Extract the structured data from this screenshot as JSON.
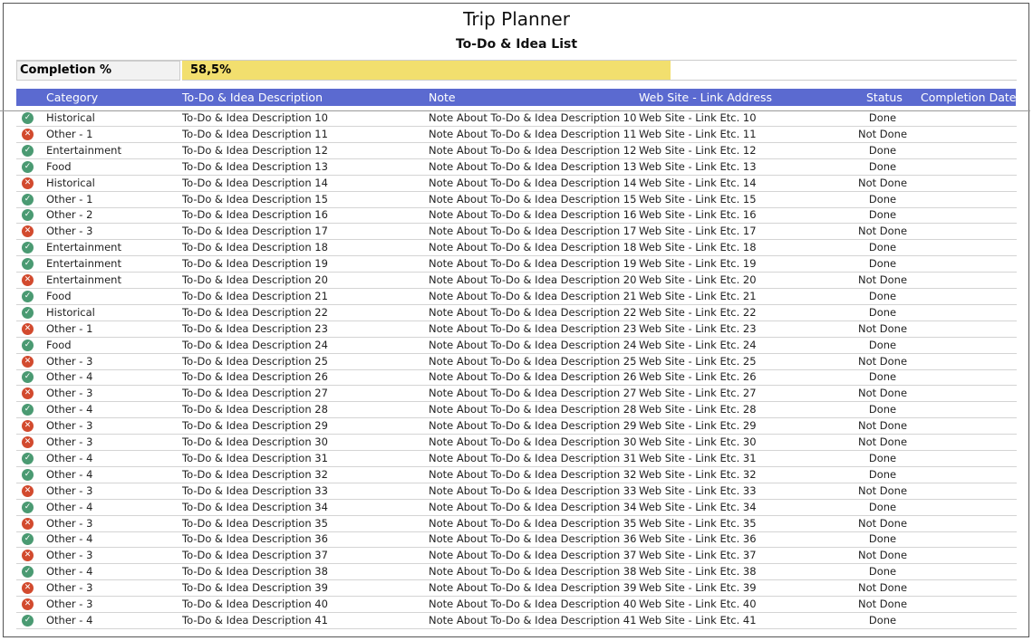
{
  "title": "Trip Planner",
  "subtitle": "To-Do & Idea List",
  "completion": {
    "label": "Completion %",
    "value_text": "58,5%",
    "percent": 58.5
  },
  "columns": [
    "Category",
    "To-Do & Idea Description",
    "Note",
    "Web Site - Link Address",
    "Status",
    "Completion Date"
  ],
  "colors": {
    "header": "#5b6ad0",
    "bar": "#f2df6e",
    "done": "#4a9a72",
    "not_done": "#d24a2e"
  },
  "rows": [
    {
      "category": "Historical",
      "description": "To-Do & Idea Description 10",
      "note": "Note About To-Do & Idea Description 10",
      "link": "Web Site - Link Etc. 10",
      "status": "Done"
    },
    {
      "category": "Other - 1",
      "description": "To-Do & Idea Description 11",
      "note": "Note About To-Do & Idea Description 11",
      "link": "Web Site - Link Etc. 11",
      "status": "Not Done"
    },
    {
      "category": "Entertainment",
      "description": "To-Do & Idea Description 12",
      "note": "Note About To-Do & Idea Description 12",
      "link": "Web Site - Link Etc. 12",
      "status": "Done"
    },
    {
      "category": "Food",
      "description": "To-Do & Idea Description 13",
      "note": "Note About To-Do & Idea Description 13",
      "link": "Web Site - Link Etc. 13",
      "status": "Done"
    },
    {
      "category": "Historical",
      "description": "To-Do & Idea Description 14",
      "note": "Note About To-Do & Idea Description 14",
      "link": "Web Site - Link Etc. 14",
      "status": "Not Done"
    },
    {
      "category": "Other - 1",
      "description": "To-Do & Idea Description 15",
      "note": "Note About To-Do & Idea Description 15",
      "link": "Web Site - Link Etc. 15",
      "status": "Done"
    },
    {
      "category": "Other - 2",
      "description": "To-Do & Idea Description 16",
      "note": "Note About To-Do & Idea Description 16",
      "link": "Web Site - Link Etc. 16",
      "status": "Done"
    },
    {
      "category": "Other - 3",
      "description": "To-Do & Idea Description 17",
      "note": "Note About To-Do & Idea Description 17",
      "link": "Web Site - Link Etc. 17",
      "status": "Not Done"
    },
    {
      "category": "Entertainment",
      "description": "To-Do & Idea Description 18",
      "note": "Note About To-Do & Idea Description 18",
      "link": "Web Site - Link Etc. 18",
      "status": "Done"
    },
    {
      "category": "Entertainment",
      "description": "To-Do & Idea Description 19",
      "note": "Note About To-Do & Idea Description 19",
      "link": "Web Site - Link Etc. 19",
      "status": "Done"
    },
    {
      "category": "Entertainment",
      "description": "To-Do & Idea Description 20",
      "note": "Note About To-Do & Idea Description 20",
      "link": "Web Site - Link Etc. 20",
      "status": "Not Done"
    },
    {
      "category": "Food",
      "description": "To-Do & Idea Description 21",
      "note": "Note About To-Do & Idea Description 21",
      "link": "Web Site - Link Etc. 21",
      "status": "Done"
    },
    {
      "category": "Historical",
      "description": "To-Do & Idea Description 22",
      "note": "Note About To-Do & Idea Description 22",
      "link": "Web Site - Link Etc. 22",
      "status": "Done"
    },
    {
      "category": "Other - 1",
      "description": "To-Do & Idea Description 23",
      "note": "Note About To-Do & Idea Description 23",
      "link": "Web Site - Link Etc. 23",
      "status": "Not Done"
    },
    {
      "category": "Food",
      "description": "To-Do & Idea Description 24",
      "note": "Note About To-Do & Idea Description 24",
      "link": "Web Site - Link Etc. 24",
      "status": "Done"
    },
    {
      "category": "Other - 3",
      "description": "To-Do & Idea Description 25",
      "note": "Note About To-Do & Idea Description 25",
      "link": "Web Site - Link Etc. 25",
      "status": "Not Done"
    },
    {
      "category": "Other - 4",
      "description": "To-Do & Idea Description 26",
      "note": "Note About To-Do & Idea Description 26",
      "link": "Web Site - Link Etc. 26",
      "status": "Done"
    },
    {
      "category": "Other - 3",
      "description": "To-Do & Idea Description 27",
      "note": "Note About To-Do & Idea Description 27",
      "link": "Web Site - Link Etc. 27",
      "status": "Not Done"
    },
    {
      "category": "Other - 4",
      "description": "To-Do & Idea Description 28",
      "note": "Note About To-Do & Idea Description 28",
      "link": "Web Site - Link Etc. 28",
      "status": "Done"
    },
    {
      "category": "Other - 3",
      "description": "To-Do & Idea Description 29",
      "note": "Note About To-Do & Idea Description 29",
      "link": "Web Site - Link Etc. 29",
      "status": "Not Done"
    },
    {
      "category": "Other - 3",
      "description": "To-Do & Idea Description 30",
      "note": "Note About To-Do & Idea Description 30",
      "link": "Web Site - Link Etc. 30",
      "status": "Not Done"
    },
    {
      "category": "Other - 4",
      "description": "To-Do & Idea Description 31",
      "note": "Note About To-Do & Idea Description 31",
      "link": "Web Site - Link Etc. 31",
      "status": "Done"
    },
    {
      "category": "Other - 4",
      "description": "To-Do & Idea Description 32",
      "note": "Note About To-Do & Idea Description 32",
      "link": "Web Site - Link Etc. 32",
      "status": "Done"
    },
    {
      "category": "Other - 3",
      "description": "To-Do & Idea Description 33",
      "note": "Note About To-Do & Idea Description 33",
      "link": "Web Site - Link Etc. 33",
      "status": "Not Done"
    },
    {
      "category": "Other - 4",
      "description": "To-Do & Idea Description 34",
      "note": "Note About To-Do & Idea Description 34",
      "link": "Web Site - Link Etc. 34",
      "status": "Done"
    },
    {
      "category": "Other - 3",
      "description": "To-Do & Idea Description 35",
      "note": "Note About To-Do & Idea Description 35",
      "link": "Web Site - Link Etc. 35",
      "status": "Not Done"
    },
    {
      "category": "Other - 4",
      "description": "To-Do & Idea Description 36",
      "note": "Note About To-Do & Idea Description 36",
      "link": "Web Site - Link Etc. 36",
      "status": "Done"
    },
    {
      "category": "Other - 3",
      "description": "To-Do & Idea Description 37",
      "note": "Note About To-Do & Idea Description 37",
      "link": "Web Site - Link Etc. 37",
      "status": "Not Done"
    },
    {
      "category": "Other - 4",
      "description": "To-Do & Idea Description 38",
      "note": "Note About To-Do & Idea Description 38",
      "link": "Web Site - Link Etc. 38",
      "status": "Done"
    },
    {
      "category": "Other - 3",
      "description": "To-Do & Idea Description 39",
      "note": "Note About To-Do & Idea Description 39",
      "link": "Web Site - Link Etc. 39",
      "status": "Not Done"
    },
    {
      "category": "Other - 3",
      "description": "To-Do & Idea Description 40",
      "note": "Note About To-Do & Idea Description 40",
      "link": "Web Site - Link Etc. 40",
      "status": "Not Done"
    },
    {
      "category": "Other - 4",
      "description": "To-Do & Idea Description 41",
      "note": "Note About To-Do & Idea Description 41",
      "link": "Web Site - Link Etc. 41",
      "status": "Done"
    }
  ]
}
